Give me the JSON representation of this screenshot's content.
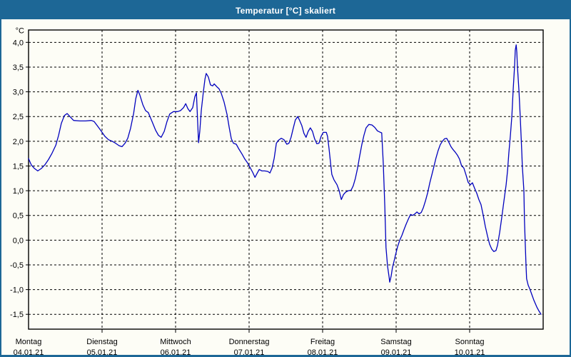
{
  "window": {
    "title": "Temperatur [°C] skaliert"
  },
  "colors": {
    "titlebar_bg": "#1d6796",
    "frame": "#1d6796",
    "plot_bg": "#fdfdf6",
    "line": "#0101be",
    "grid": "#000000",
    "axis": "#000000",
    "text": "#000000"
  },
  "chart_data": {
    "type": "line",
    "title": "Temperatur [°C] skaliert",
    "y_unit_label": "°C",
    "xlabel": "",
    "ylabel": "°C",
    "grid": true,
    "legend_position": "none",
    "ylim": [
      -1.8,
      4.25
    ],
    "yticks": [
      4.0,
      3.5,
      3.0,
      2.5,
      2.0,
      1.5,
      1.0,
      0.5,
      0.0,
      -0.5,
      -1.0,
      -1.5
    ],
    "ytick_labels": [
      "4,0",
      "3,5",
      "3,0",
      "2,5",
      "2,0",
      "1,5",
      "1,0",
      "0,5",
      "0,0",
      "-0,5",
      "-1,0",
      "-1,5"
    ],
    "x_total_hours": 168,
    "x_day_boundaries_hours": [
      0,
      24,
      48,
      72,
      96,
      120,
      144
    ],
    "x_labels": [
      {
        "weekday": "Montag",
        "date": "04.01.21"
      },
      {
        "weekday": "Dienstag",
        "date": "05.01.21"
      },
      {
        "weekday": "Mittwoch",
        "date": "06.01.21"
      },
      {
        "weekday": "Donnerstag",
        "date": "07.01.21"
      },
      {
        "weekday": "Freitag",
        "date": "08.01.21"
      },
      {
        "weekday": "Samstag",
        "date": "09.01.21"
      },
      {
        "weekday": "Sonntag",
        "date": "10.01.21"
      }
    ],
    "series": [
      {
        "name": "Temperatur",
        "unit": "°C",
        "points": [
          [
            0.0,
            1.65
          ],
          [
            0.9,
            1.52
          ],
          [
            1.9,
            1.45
          ],
          [
            3.0,
            1.4
          ],
          [
            4.2,
            1.45
          ],
          [
            5.4,
            1.53
          ],
          [
            6.5,
            1.63
          ],
          [
            7.7,
            1.76
          ],
          [
            8.9,
            1.92
          ],
          [
            9.8,
            2.12
          ],
          [
            10.7,
            2.36
          ],
          [
            11.7,
            2.52
          ],
          [
            12.6,
            2.56
          ],
          [
            13.5,
            2.5
          ],
          [
            14.7,
            2.42
          ],
          [
            16.8,
            2.41
          ],
          [
            18.6,
            2.41
          ],
          [
            20.5,
            2.42
          ],
          [
            21.4,
            2.4
          ],
          [
            22.6,
            2.3
          ],
          [
            23.8,
            2.2
          ],
          [
            24.9,
            2.1
          ],
          [
            26.1,
            2.03
          ],
          [
            27.3,
            2.0
          ],
          [
            28.4,
            1.96
          ],
          [
            29.6,
            1.91
          ],
          [
            30.5,
            1.89
          ],
          [
            31.5,
            1.96
          ],
          [
            32.4,
            2.06
          ],
          [
            33.3,
            2.26
          ],
          [
            34.3,
            2.56
          ],
          [
            35.0,
            2.86
          ],
          [
            35.7,
            3.03
          ],
          [
            36.3,
            2.94
          ],
          [
            37.3,
            2.74
          ],
          [
            38.2,
            2.62
          ],
          [
            39.1,
            2.58
          ],
          [
            40.3,
            2.4
          ],
          [
            41.5,
            2.22
          ],
          [
            42.4,
            2.12
          ],
          [
            43.3,
            2.08
          ],
          [
            44.3,
            2.2
          ],
          [
            45.2,
            2.4
          ],
          [
            46.1,
            2.55
          ],
          [
            47.3,
            2.6
          ],
          [
            48.7,
            2.6
          ],
          [
            49.6,
            2.62
          ],
          [
            50.6,
            2.68
          ],
          [
            51.3,
            2.76
          ],
          [
            52.0,
            2.66
          ],
          [
            52.7,
            2.6
          ],
          [
            53.6,
            2.68
          ],
          [
            54.3,
            2.9
          ],
          [
            54.8,
            2.98
          ],
          [
            55.2,
            2.4
          ],
          [
            55.5,
            1.97
          ],
          [
            55.9,
            2.2
          ],
          [
            56.4,
            2.62
          ],
          [
            57.1,
            3.02
          ],
          [
            57.6,
            3.26
          ],
          [
            58.0,
            3.37
          ],
          [
            58.7,
            3.3
          ],
          [
            59.4,
            3.14
          ],
          [
            60.1,
            3.12
          ],
          [
            60.6,
            3.16
          ],
          [
            61.5,
            3.1
          ],
          [
            62.2,
            3.06
          ],
          [
            62.9,
            2.97
          ],
          [
            63.8,
            2.8
          ],
          [
            64.8,
            2.54
          ],
          [
            65.5,
            2.28
          ],
          [
            66.2,
            2.05
          ],
          [
            66.9,
            1.96
          ],
          [
            67.8,
            1.94
          ],
          [
            68.7,
            1.84
          ],
          [
            69.7,
            1.74
          ],
          [
            70.6,
            1.64
          ],
          [
            71.5,
            1.56
          ],
          [
            72.4,
            1.46
          ],
          [
            73.2,
            1.37
          ],
          [
            73.9,
            1.27
          ],
          [
            74.6,
            1.35
          ],
          [
            75.3,
            1.43
          ],
          [
            76.2,
            1.4
          ],
          [
            77.1,
            1.4
          ],
          [
            78.1,
            1.39
          ],
          [
            78.8,
            1.36
          ],
          [
            79.5,
            1.46
          ],
          [
            80.2,
            1.66
          ],
          [
            80.9,
            1.96
          ],
          [
            81.6,
            2.02
          ],
          [
            82.5,
            2.06
          ],
          [
            83.4,
            2.03
          ],
          [
            84.3,
            1.94
          ],
          [
            85.0,
            1.96
          ],
          [
            85.7,
            2.08
          ],
          [
            86.4,
            2.26
          ],
          [
            87.1,
            2.43
          ],
          [
            87.9,
            2.5
          ],
          [
            88.5,
            2.42
          ],
          [
            89.2,
            2.32
          ],
          [
            89.9,
            2.16
          ],
          [
            90.6,
            2.08
          ],
          [
            91.3,
            2.2
          ],
          [
            92.0,
            2.27
          ],
          [
            92.7,
            2.2
          ],
          [
            93.4,
            2.05
          ],
          [
            94.1,
            1.95
          ],
          [
            94.8,
            1.96
          ],
          [
            95.5,
            2.1
          ],
          [
            96.2,
            2.18
          ],
          [
            97.2,
            2.18
          ],
          [
            97.6,
            2.1
          ],
          [
            98.1,
            1.85
          ],
          [
            98.6,
            1.55
          ],
          [
            99.0,
            1.33
          ],
          [
            99.7,
            1.22
          ],
          [
            100.7,
            1.12
          ],
          [
            101.4,
            1.0
          ],
          [
            102.1,
            0.82
          ],
          [
            102.8,
            0.92
          ],
          [
            103.5,
            0.97
          ],
          [
            104.4,
            1.0
          ],
          [
            105.3,
            1.01
          ],
          [
            106.0,
            1.1
          ],
          [
            106.7,
            1.25
          ],
          [
            107.4,
            1.45
          ],
          [
            108.1,
            1.7
          ],
          [
            108.8,
            1.93
          ],
          [
            109.5,
            2.12
          ],
          [
            110.2,
            2.27
          ],
          [
            111.1,
            2.34
          ],
          [
            112.1,
            2.33
          ],
          [
            113.0,
            2.28
          ],
          [
            113.9,
            2.21
          ],
          [
            114.9,
            2.18
          ],
          [
            115.3,
            2.17
          ],
          [
            115.8,
            1.55
          ],
          [
            116.3,
            0.7
          ],
          [
            116.7,
            -0.15
          ],
          [
            117.2,
            -0.53
          ],
          [
            117.7,
            -0.74
          ],
          [
            117.9,
            -0.85
          ],
          [
            118.4,
            -0.72
          ],
          [
            118.8,
            -0.56
          ],
          [
            119.3,
            -0.43
          ],
          [
            119.8,
            -0.3
          ],
          [
            120.5,
            -0.13
          ],
          [
            121.2,
            0.0
          ],
          [
            121.9,
            0.1
          ],
          [
            122.6,
            0.22
          ],
          [
            123.3,
            0.33
          ],
          [
            124.0,
            0.43
          ],
          [
            124.7,
            0.52
          ],
          [
            125.4,
            0.5
          ],
          [
            126.1,
            0.53
          ],
          [
            126.8,
            0.57
          ],
          [
            127.5,
            0.53
          ],
          [
            128.2,
            0.56
          ],
          [
            128.9,
            0.66
          ],
          [
            129.6,
            0.8
          ],
          [
            130.3,
            0.96
          ],
          [
            131.0,
            1.16
          ],
          [
            131.7,
            1.33
          ],
          [
            132.3,
            1.48
          ],
          [
            133.0,
            1.66
          ],
          [
            133.7,
            1.81
          ],
          [
            134.4,
            1.93
          ],
          [
            135.1,
            2.0
          ],
          [
            135.8,
            2.05
          ],
          [
            136.5,
            2.06
          ],
          [
            137.2,
            1.98
          ],
          [
            137.9,
            1.89
          ],
          [
            138.6,
            1.83
          ],
          [
            139.3,
            1.78
          ],
          [
            140.0,
            1.72
          ],
          [
            140.7,
            1.64
          ],
          [
            141.4,
            1.5
          ],
          [
            142.1,
            1.46
          ],
          [
            142.8,
            1.32
          ],
          [
            143.5,
            1.17
          ],
          [
            144.2,
            1.12
          ],
          [
            144.9,
            1.16
          ],
          [
            145.6,
            1.05
          ],
          [
            146.3,
            0.95
          ],
          [
            147.0,
            0.82
          ],
          [
            147.7,
            0.72
          ],
          [
            148.4,
            0.51
          ],
          [
            149.1,
            0.28
          ],
          [
            149.8,
            0.09
          ],
          [
            150.5,
            -0.08
          ],
          [
            151.2,
            -0.18
          ],
          [
            151.9,
            -0.23
          ],
          [
            152.6,
            -0.21
          ],
          [
            153.1,
            -0.1
          ],
          [
            153.8,
            0.16
          ],
          [
            154.5,
            0.47
          ],
          [
            155.2,
            0.8
          ],
          [
            155.9,
            1.12
          ],
          [
            156.4,
            1.42
          ],
          [
            156.8,
            1.76
          ],
          [
            157.3,
            2.12
          ],
          [
            157.8,
            2.52
          ],
          [
            158.2,
            3.02
          ],
          [
            158.7,
            3.56
          ],
          [
            158.9,
            3.84
          ],
          [
            159.2,
            3.95
          ],
          [
            159.4,
            3.8
          ],
          [
            159.6,
            3.52
          ],
          [
            160.1,
            3.02
          ],
          [
            160.5,
            2.52
          ],
          [
            161.0,
            1.8
          ],
          [
            161.2,
            1.5
          ],
          [
            161.7,
            1.0
          ],
          [
            161.9,
            0.4
          ],
          [
            162.2,
            -0.15
          ],
          [
            162.4,
            -0.52
          ],
          [
            162.6,
            -0.78
          ],
          [
            163.1,
            -0.91
          ],
          [
            163.6,
            -0.98
          ],
          [
            164.3,
            -1.1
          ],
          [
            165.0,
            -1.22
          ],
          [
            165.9,
            -1.35
          ],
          [
            166.6,
            -1.43
          ],
          [
            167.3,
            -1.5
          ]
        ]
      }
    ]
  }
}
